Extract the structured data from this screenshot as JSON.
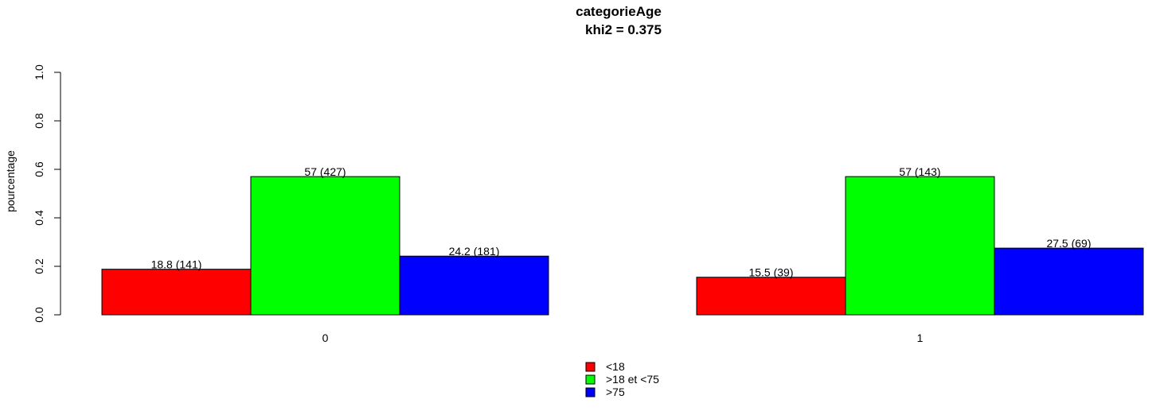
{
  "chart_data": {
    "type": "bar",
    "title": "categorieAge",
    "subtitle": "khi2 = 0.375",
    "xlabel": "",
    "ylabel": "pourcentage",
    "ylim": [
      0,
      1
    ],
    "yticks": [
      "0.0",
      "0.2",
      "0.4",
      "0.6",
      "0.8",
      "1.0"
    ],
    "categories": [
      "0",
      "1"
    ],
    "grid": false,
    "legend_position": "bottom-center",
    "series": [
      {
        "name": "<18",
        "color": "#ff0000",
        "values": [
          0.188,
          0.155
        ],
        "labels": [
          "18.8 (141)",
          "15.5 (39)"
        ]
      },
      {
        "name": ">18 et <75",
        "color": "#00ff00",
        "values": [
          0.57,
          0.57
        ],
        "labels": [
          "57 (427)",
          "57 (143)"
        ]
      },
      {
        "name": ">75",
        "color": "#0000ff",
        "values": [
          0.242,
          0.275
        ],
        "labels": [
          "24.2 (181)",
          "27.5 (69)"
        ]
      }
    ]
  }
}
